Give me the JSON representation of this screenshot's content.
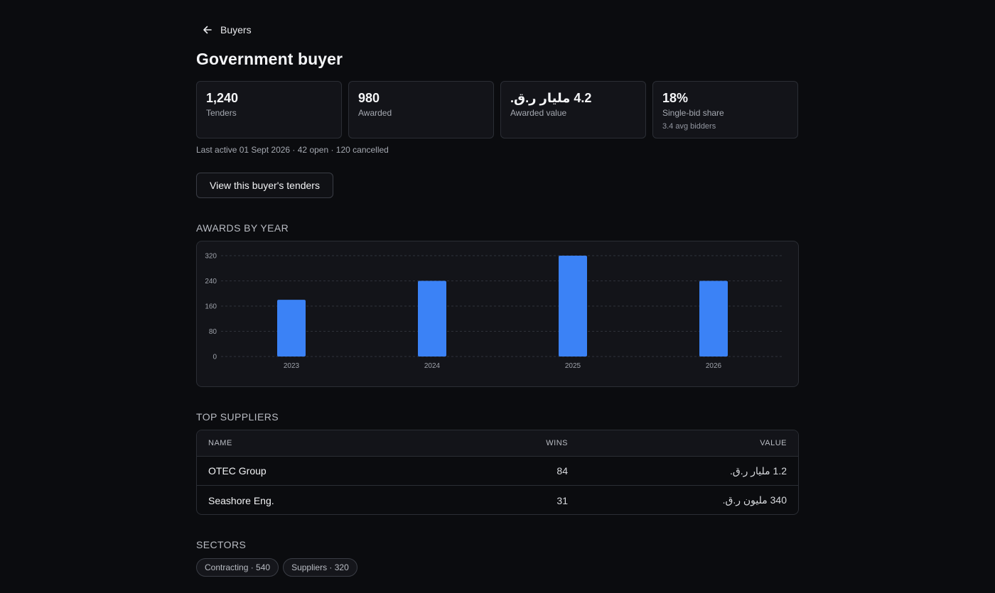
{
  "nav": {
    "back_label": "Buyers"
  },
  "page": {
    "title": "Government buyer"
  },
  "stats": [
    {
      "value": "1,240",
      "label": "Tenders",
      "sub": ""
    },
    {
      "value": "980",
      "label": "Awarded",
      "sub": ""
    },
    {
      "value": "4.2 مليار ر.ق.",
      "label": "Awarded value",
      "sub": ""
    },
    {
      "value": "18%",
      "label": "Single-bid share",
      "sub": "3.4 avg bidders"
    }
  ],
  "meta": "Last active 01 Sept 2026 · 42 open · 120 cancelled",
  "actions": {
    "view_tenders": "View this buyer's tenders"
  },
  "sections": {
    "awards": "AWARDS BY YEAR",
    "suppliers": "TOP SUPPLIERS",
    "sectors": "SECTORS"
  },
  "chart_data": {
    "type": "bar",
    "categories": [
      "2023",
      "2024",
      "2025",
      "2026"
    ],
    "values": [
      180,
      240,
      320,
      240
    ],
    "ylim": [
      0,
      320
    ],
    "yticks": [
      0,
      80,
      160,
      240,
      320
    ],
    "grid": true,
    "bar_color": "#3b82f6",
    "title": "",
    "xlabel": "",
    "ylabel": ""
  },
  "suppliers": {
    "headers": [
      "NAME",
      "WINS",
      "VALUE"
    ],
    "rows": [
      {
        "name": "OTEC Group",
        "wins": "84",
        "value": "1.2 مليار ر.ق."
      },
      {
        "name": "Seashore Eng.",
        "wins": "31",
        "value": "340 مليون ر.ق."
      }
    ]
  },
  "sectors": [
    {
      "label": "Contracting · 540"
    },
    {
      "label": "Suppliers · 320"
    }
  ]
}
